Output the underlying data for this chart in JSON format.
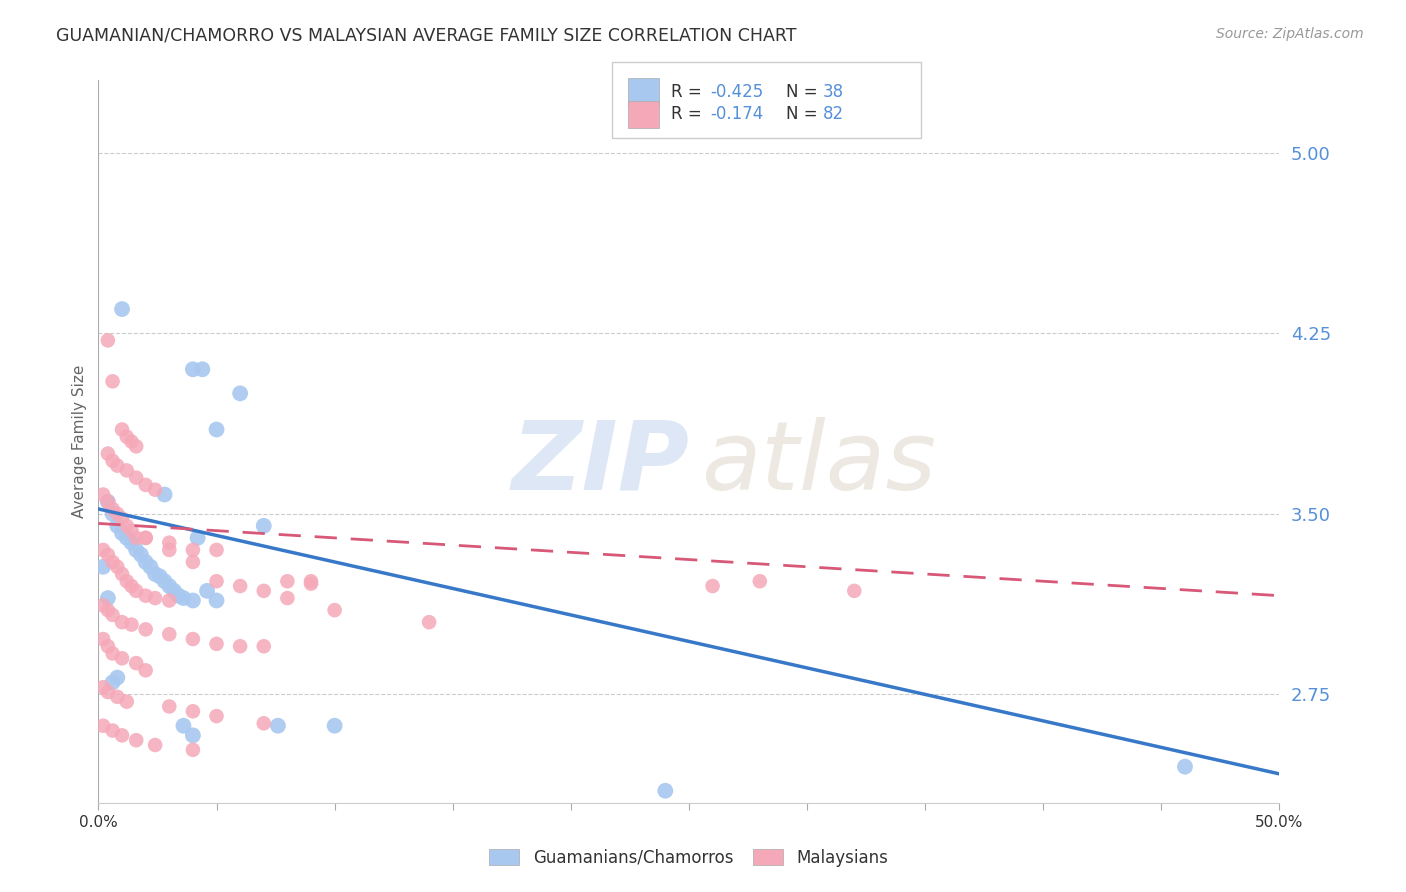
{
  "title": "GUAMANIAN/CHAMORRO VS MALAYSIAN AVERAGE FAMILY SIZE CORRELATION CHART",
  "source": "Source: ZipAtlas.com",
  "ylabel": "Average Family Size",
  "right_yticks": [
    2.75,
    3.5,
    4.25,
    5.0
  ],
  "blue_color": "#a8c8f0",
  "pink_color": "#f5a8b8",
  "blue_line_color": "#3878c8",
  "pink_line_color": "#d85878",
  "pink_line_dash": [
    8,
    5
  ],
  "right_axis_color": "#5590d8",
  "legend_r_color": "#5590d8",
  "xlim": [
    0,
    50
  ],
  "ylim": [
    2.3,
    5.3
  ],
  "guamanian_x": [
    1.0,
    2.8,
    4.0,
    4.4,
    5.0,
    6.0,
    0.4,
    0.6,
    0.8,
    1.0,
    1.2,
    1.4,
    1.6,
    1.8,
    2.0,
    2.2,
    2.4,
    2.6,
    2.8,
    3.0,
    3.2,
    3.4,
    3.6,
    4.0,
    4.2,
    4.6,
    5.0,
    7.0,
    0.2,
    0.4,
    0.6,
    0.8,
    3.6,
    4.0,
    7.6,
    10.0,
    24.0,
    46.0
  ],
  "guamanian_y": [
    4.35,
    3.58,
    4.1,
    4.1,
    3.85,
    4.0,
    3.55,
    3.5,
    3.45,
    3.42,
    3.4,
    3.38,
    3.35,
    3.33,
    3.3,
    3.28,
    3.25,
    3.24,
    3.22,
    3.2,
    3.18,
    3.16,
    3.15,
    3.14,
    3.4,
    3.18,
    3.14,
    3.45,
    3.28,
    3.15,
    2.8,
    2.82,
    2.62,
    2.58,
    2.62,
    2.62,
    2.35,
    2.45
  ],
  "malaysian_x": [
    0.4,
    0.6,
    1.0,
    1.2,
    1.4,
    1.6,
    0.4,
    0.6,
    0.8,
    1.2,
    1.6,
    2.0,
    2.4,
    0.2,
    0.4,
    0.6,
    0.8,
    1.0,
    1.2,
    1.4,
    1.6,
    2.0,
    3.0,
    4.0,
    5.0,
    0.2,
    0.4,
    0.6,
    0.8,
    1.0,
    1.2,
    1.4,
    1.6,
    2.0,
    2.4,
    3.0,
    0.2,
    0.4,
    0.6,
    1.0,
    1.4,
    2.0,
    3.0,
    4.0,
    5.0,
    6.0,
    7.0,
    8.0,
    9.0,
    0.2,
    0.4,
    0.6,
    1.0,
    1.6,
    2.0,
    0.2,
    0.4,
    0.8,
    1.2,
    3.0,
    4.0,
    5.0,
    7.0,
    9.0,
    0.2,
    0.6,
    1.0,
    1.6,
    2.4,
    4.0,
    2.0,
    3.0,
    4.0,
    5.0,
    6.0,
    7.0,
    8.0,
    10.0,
    14.0,
    26.0,
    28.0,
    32.0
  ],
  "malaysian_y": [
    4.22,
    4.05,
    3.85,
    3.82,
    3.8,
    3.78,
    3.75,
    3.72,
    3.7,
    3.68,
    3.65,
    3.62,
    3.6,
    3.58,
    3.55,
    3.52,
    3.5,
    3.48,
    3.45,
    3.43,
    3.4,
    3.4,
    3.38,
    3.35,
    3.35,
    3.35,
    3.33,
    3.3,
    3.28,
    3.25,
    3.22,
    3.2,
    3.18,
    3.16,
    3.15,
    3.14,
    3.12,
    3.1,
    3.08,
    3.05,
    3.04,
    3.02,
    3.0,
    2.98,
    2.96,
    2.95,
    2.95,
    3.22,
    3.22,
    2.98,
    2.95,
    2.92,
    2.9,
    2.88,
    2.85,
    2.78,
    2.76,
    2.74,
    2.72,
    2.7,
    2.68,
    2.66,
    2.63,
    3.21,
    2.62,
    2.6,
    2.58,
    2.56,
    2.54,
    2.52,
    3.4,
    3.35,
    3.3,
    3.22,
    3.2,
    3.18,
    3.15,
    3.1,
    3.05,
    3.2,
    3.22,
    3.18
  ]
}
